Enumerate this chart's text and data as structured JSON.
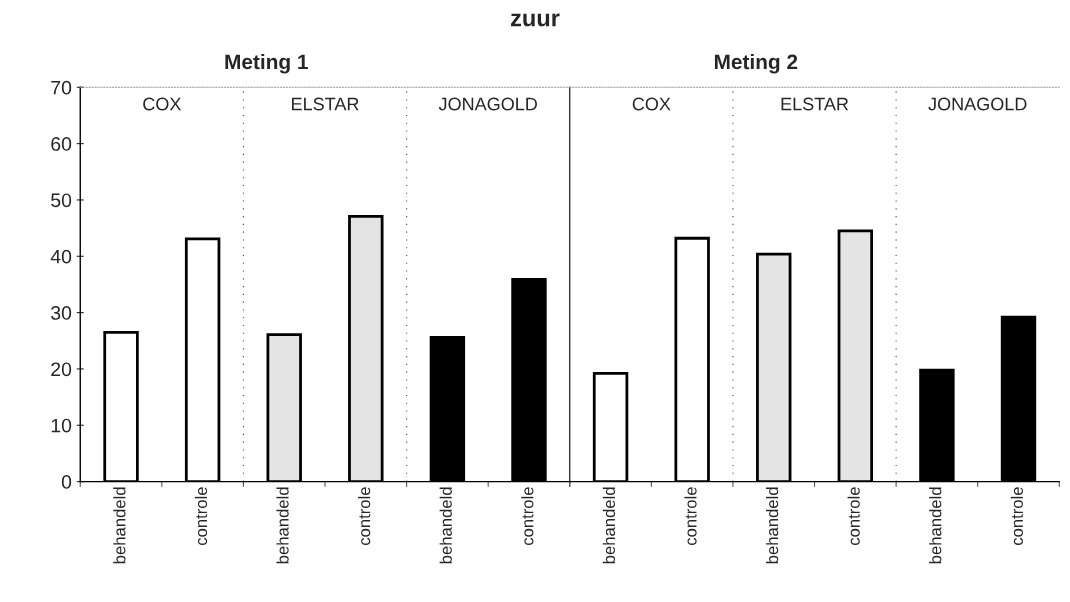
{
  "chart_data": [
    {
      "type": "bar",
      "title": "zuur",
      "subtitle": "Meting 1",
      "categories": [
        "behandeld",
        "controle",
        "behandeld",
        "controle",
        "behandeld",
        "controle"
      ],
      "values": [
        26.5,
        43.1,
        26.1,
        47.1,
        25.6,
        35.9
      ],
      "colors": [
        "#ffffff",
        "#ffffff",
        "#e4e4e4",
        "#e4e4e4",
        "#000000",
        "#000000"
      ],
      "ylim": [
        0,
        70
      ],
      "yticks": [
        0,
        10,
        20,
        30,
        40,
        50,
        60,
        70
      ],
      "grid": false,
      "annotations": [
        "COX",
        "ELSTAR",
        "JONAGOLD"
      ]
    },
    {
      "type": "bar",
      "subtitle": "Meting 2",
      "categories": [
        "behandeld",
        "controle",
        "behandeld",
        "controle",
        "behandeld",
        "controle"
      ],
      "values": [
        19.2,
        43.2,
        40.4,
        44.5,
        19.8,
        29.2
      ],
      "colors": [
        "#ffffff",
        "#ffffff",
        "#e4e4e4",
        "#e4e4e4",
        "#000000",
        "#000000"
      ],
      "ylim": [
        0,
        70
      ],
      "tick_labels": "x",
      "grid": false,
      "annotations": [
        "COX",
        "ELSTAR",
        "JONAGOLD"
      ]
    }
  ]
}
